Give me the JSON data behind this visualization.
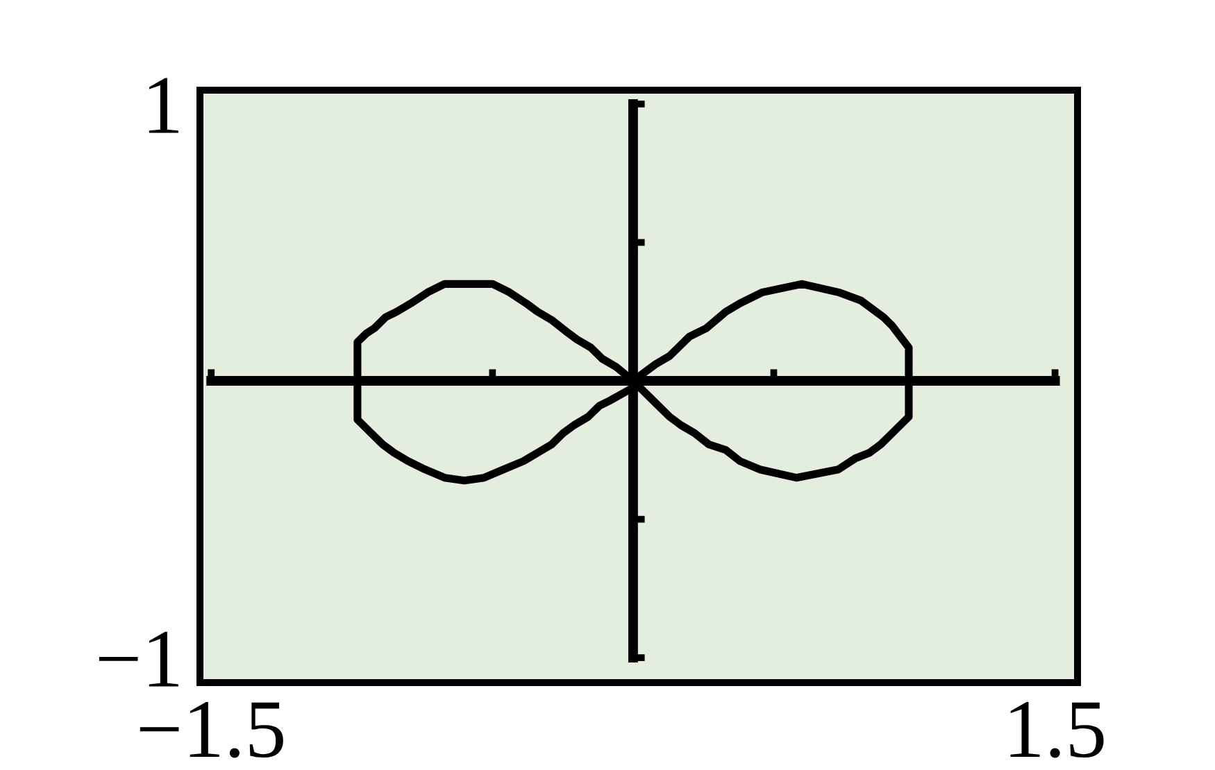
{
  "chart_data": {
    "type": "line",
    "xlim": [
      -1.54,
      1.58
    ],
    "ylim": [
      -1.09,
      1.05
    ],
    "xticks": [
      {
        "value": -1.5,
        "label": "−1.5"
      },
      {
        "value": -0.5,
        "label": null
      },
      {
        "value": 0.5,
        "label": null
      },
      {
        "value": 1.5,
        "label": "1.5"
      }
    ],
    "yticks": [
      {
        "value": -1,
        "label": "−1"
      },
      {
        "value": -0.5,
        "label": null
      },
      {
        "value": 0.5,
        "label": null
      },
      {
        "value": 1,
        "label": "1"
      }
    ],
    "line_style": "solid",
    "series": [
      {
        "color": "#000000",
        "x": [
          0,
          0.08,
          0.13,
          0.2,
          0.26,
          0.33,
          0.38,
          0.46,
          0.6,
          0.73,
          0.81,
          0.85,
          0.89,
          0.92,
          0.95,
          0.98,
          0.98,
          0.98,
          0.95,
          0.92,
          0.88,
          0.84,
          0.79,
          0.73,
          0.58,
          0.45,
          0.38,
          0.33,
          0.27,
          0.22,
          0.17,
          0.13,
          0.08,
          0,
          -0.06,
          -0.11,
          -0.15,
          -0.2,
          -0.24,
          -0.29,
          -0.34,
          -0.38,
          -0.44,
          -0.5,
          -0.59,
          -0.67,
          -0.73,
          -0.79,
          -0.84,
          -0.88,
          -0.92,
          -0.95,
          -0.98,
          -0.98,
          -0.98,
          -0.96,
          -0.93,
          -0.89,
          -0.85,
          -0.8,
          -0.74,
          -0.67,
          -0.6,
          -0.53,
          -0.46,
          -0.39,
          -0.34,
          -0.29,
          -0.25,
          -0.21,
          -0.16,
          -0.12,
          -0.08,
          -0.01
        ],
        "values": [
          0,
          0.06,
          0.09,
          0.16,
          0.19,
          0.25,
          0.28,
          0.32,
          0.35,
          0.32,
          0.29,
          0.26,
          0.23,
          0.2,
          0.16,
          0.12,
          0,
          -0.13,
          -0.16,
          -0.19,
          -0.23,
          -0.26,
          -0.28,
          -0.32,
          -0.35,
          -0.32,
          -0.29,
          -0.25,
          -0.23,
          -0.19,
          -0.16,
          -0.13,
          -0.08,
          0,
          0.05,
          0.08,
          0.12,
          0.15,
          0.18,
          0.22,
          0.25,
          0.28,
          0.32,
          0.35,
          0.35,
          0.35,
          0.32,
          0.28,
          0.25,
          0.23,
          0.19,
          0.17,
          0.14,
          0,
          -0.14,
          -0.16,
          -0.19,
          -0.23,
          -0.26,
          -0.29,
          -0.32,
          -0.35,
          -0.36,
          -0.35,
          -0.32,
          -0.29,
          -0.26,
          -0.23,
          -0.19,
          -0.16,
          -0.13,
          -0.09,
          -0.07,
          -0.03
        ]
      }
    ]
  }
}
